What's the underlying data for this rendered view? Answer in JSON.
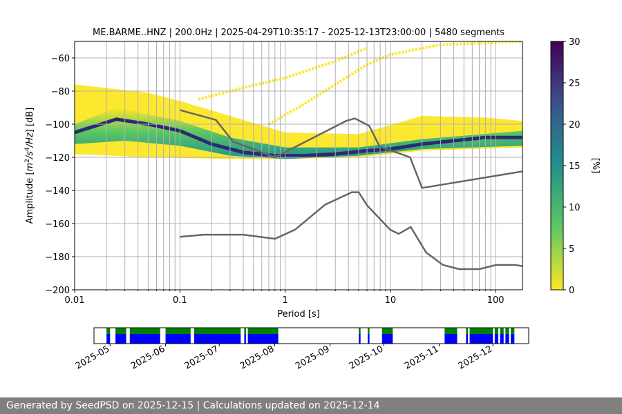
{
  "chart_data": {
    "type": "heatmap",
    "title": "ME.BARME..HNZ | 200.0Hz | 2025-04-29T10:35:17 - 2025-12-13T23:00:00 | 5480 segments",
    "xlabel": "Period [s]",
    "ylabel": "Amplitude [m2/s4/Hz] [dB]",
    "x_scale": "log",
    "xlim": [
      0.01,
      180
    ],
    "ylim": [
      -200,
      -50
    ],
    "x_ticks": [
      {
        "value": 0.01,
        "label": "0.01"
      },
      {
        "value": 0.1,
        "label": "0.1"
      },
      {
        "value": 1,
        "label": "1"
      },
      {
        "value": 10,
        "label": "10"
      },
      {
        "value": 100,
        "label": "100"
      }
    ],
    "y_ticks": [
      {
        "value": -60,
        "label": "−60"
      },
      {
        "value": -80,
        "label": "−80"
      },
      {
        "value": -100,
        "label": "−100"
      },
      {
        "value": -120,
        "label": "−120"
      },
      {
        "value": -140,
        "label": "−140"
      },
      {
        "value": -160,
        "label": "−160"
      },
      {
        "value": -180,
        "label": "−180"
      },
      {
        "value": -200,
        "label": "−200"
      }
    ],
    "colorbar": {
      "label": "[%]",
      "range": [
        0,
        30
      ],
      "ticks": [
        {
          "value": 0,
          "label": "0"
        },
        {
          "value": 5,
          "label": "5"
        },
        {
          "value": 10,
          "label": "10"
        },
        {
          "value": 15,
          "label": "15"
        },
        {
          "value": 20,
          "label": "20"
        },
        {
          "value": 25,
          "label": "25"
        },
        {
          "value": 30,
          "label": "30"
        }
      ],
      "colors": [
        "#fde725",
        "#5ec962",
        "#21918c",
        "#3b528b",
        "#440154"
      ]
    },
    "mode_curve": [
      [
        0.01,
        -105
      ],
      [
        0.025,
        -97
      ],
      [
        0.05,
        -100
      ],
      [
        0.1,
        -104
      ],
      [
        0.2,
        -112
      ],
      [
        0.4,
        -117
      ],
      [
        0.8,
        -119
      ],
      [
        1.5,
        -119
      ],
      [
        3,
        -118
      ],
      [
        6,
        -116
      ],
      [
        10,
        -115
      ],
      [
        20,
        -112
      ],
      [
        40,
        -110
      ],
      [
        80,
        -108
      ],
      [
        180,
        -108
      ]
    ],
    "density_band": {
      "lower": [
        [
          0.01,
          -112
        ],
        [
          0.03,
          -110
        ],
        [
          0.1,
          -113
        ],
        [
          0.3,
          -119
        ],
        [
          1,
          -121
        ],
        [
          5,
          -119
        ],
        [
          20,
          -115
        ],
        [
          180,
          -113
        ]
      ],
      "upper": [
        [
          0.01,
          -100
        ],
        [
          0.025,
          -90
        ],
        [
          0.1,
          -98
        ],
        [
          0.3,
          -108
        ],
        [
          1,
          -114
        ],
        [
          5,
          -114
        ],
        [
          20,
          -109
        ],
        [
          180,
          -104
        ]
      ]
    },
    "outer_envelope": {
      "lower": [
        [
          0.01,
          -118
        ],
        [
          0.05,
          -120
        ],
        [
          0.3,
          -121
        ],
        [
          1,
          -121
        ],
        [
          5,
          -120
        ],
        [
          20,
          -116
        ],
        [
          180,
          -114
        ]
      ],
      "upper": [
        [
          0.01,
          -76
        ],
        [
          0.05,
          -81
        ],
        [
          0.1,
          -86
        ],
        [
          0.3,
          -95
        ],
        [
          1,
          -105
        ],
        [
          5,
          -106
        ],
        [
          20,
          -95
        ],
        [
          80,
          -96
        ],
        [
          180,
          -98
        ]
      ]
    },
    "harmonic_lines": [
      [
        [
          0.7,
          -100
        ],
        [
          1.5,
          -88
        ],
        [
          3,
          -76
        ],
        [
          6,
          -64
        ],
        [
          10,
          -58
        ],
        [
          30,
          -52
        ],
        [
          180,
          -50
        ]
      ],
      [
        [
          0.15,
          -85
        ],
        [
          0.4,
          -78
        ],
        [
          1,
          -72
        ],
        [
          3,
          -62
        ],
        [
          6,
          -54
        ]
      ]
    ],
    "nhnm": [
      [
        0.1,
        -91.5
      ],
      [
        0.22,
        -97.4
      ],
      [
        0.32,
        -110.5
      ],
      [
        0.8,
        -120
      ],
      [
        3.8,
        -98
      ],
      [
        4.6,
        -96.5
      ],
      [
        6.3,
        -101
      ],
      [
        7.9,
        -113.5
      ],
      [
        15.4,
        -120
      ],
      [
        20,
        -138.5
      ],
      [
        180,
        -128.5
      ]
    ],
    "nlnm": [
      [
        0.1,
        -168
      ],
      [
        0.17,
        -166.7
      ],
      [
        0.4,
        -166.7
      ],
      [
        0.8,
        -169.2
      ],
      [
        1.24,
        -163.7
      ],
      [
        2.4,
        -148.6
      ],
      [
        4.3,
        -141.1
      ],
      [
        5,
        -141.1
      ],
      [
        6,
        -149
      ],
      [
        10,
        -163.8
      ],
      [
        12,
        -166.2
      ],
      [
        15.6,
        -162.1
      ],
      [
        21.9,
        -177.5
      ],
      [
        31.6,
        -185
      ],
      [
        45,
        -187.5
      ],
      [
        70,
        -187.5
      ],
      [
        101,
        -185
      ],
      [
        154,
        -185
      ],
      [
        180,
        -185.7
      ]
    ],
    "availability": {
      "x_ticks": [
        "2025-05",
        "2025-06",
        "2025-07",
        "2025-08",
        "2025-09",
        "2025-10",
        "2025-11",
        "2025-12"
      ],
      "green_color": "#008000",
      "blue_color": "#0000ff",
      "segments": [
        {
          "start": "2025-04-29",
          "end": "2025-05-01"
        },
        {
          "start": "2025-05-04",
          "end": "2025-05-10"
        },
        {
          "start": "2025-05-12",
          "end": "2025-05-29"
        },
        {
          "start": "2025-06-01",
          "end": "2025-06-15"
        },
        {
          "start": "2025-06-17",
          "end": "2025-07-13"
        },
        {
          "start": "2025-07-15",
          "end": "2025-07-16"
        },
        {
          "start": "2025-07-17",
          "end": "2025-08-03"
        },
        {
          "start": "2025-09-17",
          "end": "2025-09-18"
        },
        {
          "start": "2025-09-22",
          "end": "2025-09-23"
        },
        {
          "start": "2025-09-30",
          "end": "2025-10-06"
        },
        {
          "start": "2025-11-04",
          "end": "2025-11-11"
        },
        {
          "start": "2025-11-16",
          "end": "2025-11-17"
        },
        {
          "start": "2025-11-18",
          "end": "2025-12-01"
        },
        {
          "start": "2025-12-02",
          "end": "2025-12-04"
        },
        {
          "start": "2025-12-05",
          "end": "2025-12-07"
        },
        {
          "start": "2025-12-08",
          "end": "2025-12-10"
        },
        {
          "start": "2025-12-11",
          "end": "2025-12-13"
        }
      ]
    }
  },
  "footer": "Generated by SeedPSD on 2025-12-15 | Calculations updated on 2025-12-14"
}
